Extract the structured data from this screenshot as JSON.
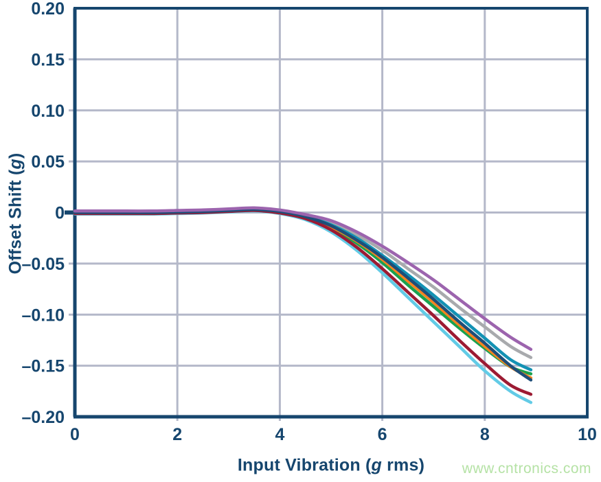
{
  "watermark": {
    "text": "www.cntronics.com"
  },
  "colors": {
    "axis": "#16466e",
    "grid": "#b4b8c9",
    "background": "#ffffff",
    "watermark": "#b5e2a5"
  },
  "chart_data": {
    "type": "line",
    "title": "",
    "xlabel": {
      "prefix": "Input Vibration (",
      "italic": "g",
      "suffix": " rms)"
    },
    "ylabel": {
      "prefix": "Offset Shift (",
      "italic": "g",
      "suffix": ")"
    },
    "xlim": [
      0,
      10
    ],
    "ylim": [
      -0.2,
      0.2
    ],
    "grid": true,
    "legend": "none",
    "x_ticks": [
      0,
      2,
      4,
      6,
      8,
      10
    ],
    "x_tick_labels": [
      "0",
      "2",
      "4",
      "6",
      "8",
      "10"
    ],
    "y_ticks": [
      0.2,
      0.15,
      0.1,
      0.05,
      0,
      -0.05,
      -0.1,
      -0.15,
      -0.2
    ],
    "y_tick_labels": [
      "0.20",
      "0.15",
      "0.10",
      "0.05",
      "0",
      "–0.05",
      "–0.10",
      "–0.15",
      "–0.20"
    ],
    "x": [
      0,
      0.5,
      1,
      1.5,
      2,
      2.5,
      3,
      3.5,
      4,
      4.5,
      5,
      5.5,
      6,
      6.5,
      7,
      7.5,
      8,
      8.5,
      8.9
    ],
    "series": [
      {
        "name": "gray",
        "color": "#a8aaad",
        "values": [
          0.001,
          0.001,
          0.001,
          0.001,
          0.0015,
          0.002,
          0.003,
          0.004,
          0.002,
          -0.003,
          -0.01,
          -0.022,
          -0.037,
          -0.055,
          -0.073,
          -0.093,
          -0.112,
          -0.131,
          -0.142
        ]
      },
      {
        "name": "teal",
        "color": "#1492b4",
        "values": [
          0.0005,
          0.0005,
          0.0005,
          0.0005,
          0.001,
          0.0015,
          0.0025,
          0.0035,
          0.0015,
          -0.004,
          -0.012,
          -0.025,
          -0.042,
          -0.061,
          -0.081,
          -0.102,
          -0.123,
          -0.144,
          -0.154
        ]
      },
      {
        "name": "green",
        "color": "#1aa14e",
        "values": [
          -0.0005,
          -0.0005,
          -0.0005,
          -0.0005,
          0,
          0.0005,
          0.0015,
          0.0025,
          0,
          -0.005,
          -0.015,
          -0.03,
          -0.049,
          -0.071,
          -0.092,
          -0.113,
          -0.133,
          -0.151,
          -0.158
        ]
      },
      {
        "name": "orange",
        "color": "#f5831f",
        "values": [
          0,
          0,
          0,
          0,
          0.0005,
          0.001,
          0.002,
          0.003,
          0.0005,
          -0.005,
          -0.014,
          -0.028,
          -0.046,
          -0.067,
          -0.088,
          -0.11,
          -0.131,
          -0.151,
          -0.162
        ]
      },
      {
        "name": "lightcyan",
        "color": "#62cbe6",
        "values": [
          -0.0015,
          -0.0015,
          -0.0015,
          -0.0015,
          -0.001,
          -0.0005,
          0.0005,
          0.0015,
          -0.001,
          -0.007,
          -0.019,
          -0.037,
          -0.059,
          -0.083,
          -0.107,
          -0.131,
          -0.155,
          -0.175,
          -0.186
        ]
      },
      {
        "name": "crimson",
        "color": "#9c1b33",
        "values": [
          -0.001,
          -0.001,
          -0.001,
          -0.001,
          -0.0005,
          0,
          0.001,
          0.002,
          -0.0005,
          -0.006,
          -0.017,
          -0.034,
          -0.055,
          -0.078,
          -0.101,
          -0.125,
          -0.148,
          -0.169,
          -0.178
        ]
      },
      {
        "name": "navy",
        "color": "#1e4e79",
        "values": [
          0,
          0,
          0,
          0,
          0.0005,
          0.001,
          0.002,
          0.003,
          0.001,
          -0.004,
          -0.013,
          -0.027,
          -0.044,
          -0.064,
          -0.085,
          -0.107,
          -0.128,
          -0.15,
          -0.164
        ]
      },
      {
        "name": "purple",
        "color": "#9c64ae",
        "values": [
          0.0015,
          0.0015,
          0.0015,
          0.0015,
          0.002,
          0.0025,
          0.0035,
          0.0045,
          0.0025,
          -0.002,
          -0.008,
          -0.019,
          -0.033,
          -0.049,
          -0.066,
          -0.085,
          -0.104,
          -0.122,
          -0.134
        ]
      }
    ]
  }
}
